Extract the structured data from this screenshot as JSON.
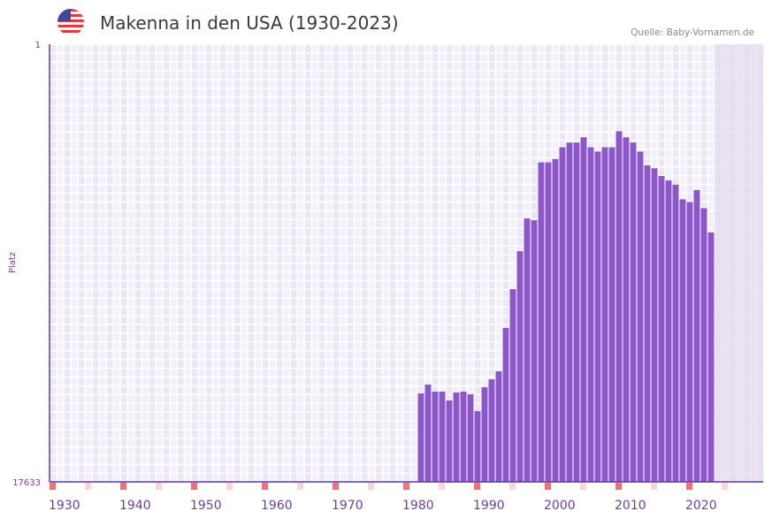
{
  "header": {
    "title": "Makenna in den USA (1930-2023)",
    "source": "Quelle: Baby-Vornamen.de",
    "flag_icon": "us-flag-icon"
  },
  "colors": {
    "bar": "#8c55c8",
    "axis": "#5a3a9a",
    "decade_marker": "#e8747c",
    "half_decade_marker": "#f5d5e0",
    "future_shade": "#e2dced"
  },
  "chart_data": {
    "type": "bar",
    "title": "Makenna in den USA (1930-2023)",
    "xlabel": "",
    "ylabel": "Platz",
    "y_scale": "log",
    "y_reversed": true,
    "ylim": [
      1,
      17633
    ],
    "y_tick_labels": [
      "1",
      "17633"
    ],
    "xlim": [
      1930,
      2030
    ],
    "x_tick_labels": [
      "1930",
      "1940",
      "1950",
      "1960",
      "1970",
      "1980",
      "1990",
      "2000",
      "2010",
      "2020"
    ],
    "x_ticks": [
      1930,
      1940,
      1950,
      1960,
      1970,
      1980,
      1990,
      2000,
      2010,
      2020
    ],
    "grid": true,
    "years": [
      1982,
      1983,
      1984,
      1985,
      1986,
      1987,
      1988,
      1989,
      1990,
      1991,
      1992,
      1993,
      1994,
      1995,
      1996,
      1997,
      1998,
      1999,
      2000,
      2001,
      2002,
      2003,
      2004,
      2005,
      2006,
      2007,
      2008,
      2009,
      2010,
      2011,
      2012,
      2013,
      2014,
      2015,
      2016,
      2017,
      2018,
      2019,
      2020,
      2021,
      2022,
      2023
    ],
    "values": [
      2443,
      2006,
      2349,
      2349,
      2864,
      2396,
      2349,
      2493,
      3630,
      2128,
      1782,
      1493,
      567,
      238,
      102,
      49,
      51,
      14,
      14,
      13,
      10,
      9,
      9,
      8,
      10,
      11,
      10,
      10,
      7,
      8,
      9,
      11,
      15,
      16,
      19,
      21,
      23,
      32,
      34,
      26,
      39,
      67
    ]
  }
}
